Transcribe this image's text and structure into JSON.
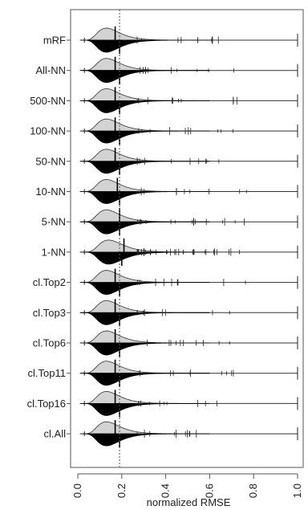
{
  "chart_data": {
    "type": "split-violin (bean plot)",
    "xlabel": "normalized RMSE",
    "ylabel": "",
    "xlim": [
      -0.03,
      1.01
    ],
    "x_ticks": [
      0.0,
      0.2,
      0.4,
      0.6,
      0.8,
      1.0
    ],
    "x_tick_labels": [
      "0.0",
      "0.2",
      "0.4",
      "0.6",
      "0.8",
      "1.0"
    ],
    "reference_line_x": 0.19,
    "grid": false,
    "colors": {
      "upper_half": "#d3d3d3",
      "lower_half": "#000000",
      "reference_line": "#555555"
    },
    "categories": [
      "mRF",
      "All-NN",
      "500-NN",
      "100-NN",
      "50-NN",
      "10-NN",
      "5-NN",
      "1-NN",
      "cl.Top2",
      "cl.Top3",
      "cl.Top6",
      "cl.Top11",
      "cl.Top16",
      "cl.All"
    ],
    "series": [
      {
        "category": "mRF",
        "upper_median": 0.17,
        "lower_median": 0.19,
        "mode": 0.13,
        "range": [
          0.02,
          1.0
        ]
      },
      {
        "category": "All-NN",
        "upper_median": 0.17,
        "lower_median": 0.19,
        "mode": 0.13,
        "range": [
          0.02,
          1.0
        ]
      },
      {
        "category": "500-NN",
        "upper_median": 0.17,
        "lower_median": 0.19,
        "mode": 0.13,
        "range": [
          0.02,
          1.0
        ]
      },
      {
        "category": "100-NN",
        "upper_median": 0.17,
        "lower_median": 0.19,
        "mode": 0.13,
        "range": [
          0.02,
          1.0
        ]
      },
      {
        "category": "50-NN",
        "upper_median": 0.17,
        "lower_median": 0.19,
        "mode": 0.13,
        "range": [
          0.02,
          1.0
        ]
      },
      {
        "category": "10-NN",
        "upper_median": 0.18,
        "lower_median": 0.19,
        "mode": 0.13,
        "range": [
          0.02,
          1.0
        ]
      },
      {
        "category": "5-NN",
        "upper_median": 0.19,
        "lower_median": 0.19,
        "mode": 0.13,
        "range": [
          0.02,
          1.0
        ]
      },
      {
        "category": "1-NN",
        "upper_median": 0.21,
        "lower_median": 0.2,
        "mode": 0.14,
        "range": [
          0.02,
          1.0
        ]
      },
      {
        "category": "cl.Top2",
        "upper_median": 0.17,
        "lower_median": 0.19,
        "mode": 0.13,
        "range": [
          0.02,
          1.0
        ]
      },
      {
        "category": "cl.Top3",
        "upper_median": 0.17,
        "lower_median": 0.19,
        "mode": 0.13,
        "range": [
          0.02,
          1.0
        ]
      },
      {
        "category": "cl.Top6",
        "upper_median": 0.17,
        "lower_median": 0.19,
        "mode": 0.13,
        "range": [
          0.02,
          1.0
        ]
      },
      {
        "category": "cl.Top11",
        "upper_median": 0.17,
        "lower_median": 0.19,
        "mode": 0.13,
        "range": [
          0.02,
          1.0
        ]
      },
      {
        "category": "cl.Top16",
        "upper_median": 0.17,
        "lower_median": 0.19,
        "mode": 0.13,
        "range": [
          0.02,
          1.0
        ]
      },
      {
        "category": "cl.All",
        "upper_median": 0.17,
        "lower_median": 0.19,
        "mode": 0.13,
        "range": [
          0.02,
          1.0
        ]
      }
    ]
  }
}
